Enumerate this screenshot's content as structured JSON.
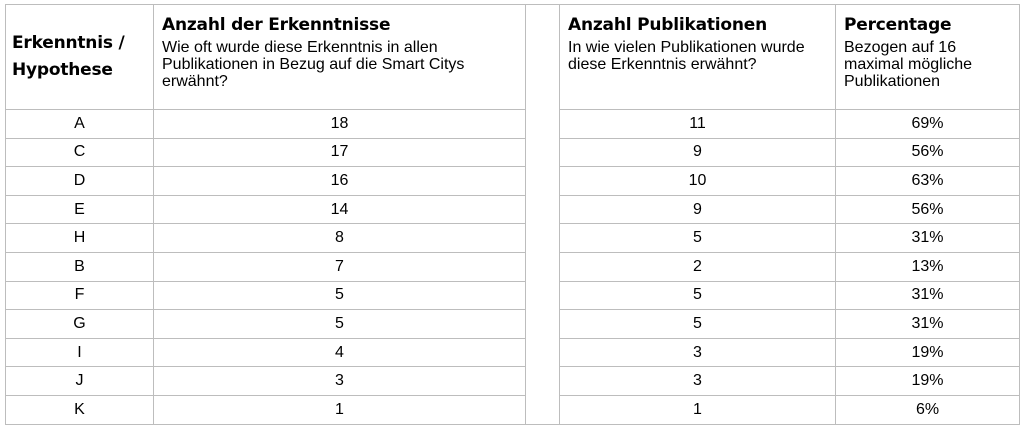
{
  "headers": {
    "hypothesis": "Erkenntnis / Hypothese",
    "findings_title": "Anzahl der Erkenntnisse",
    "findings_sub": "Wie oft wurde diese Erkenntnis in allen Publikationen in Bezug auf die Smart Citys erwähnt?",
    "publications_title": "Anzahl Publikationen",
    "publications_sub": "In wie vielen Publikationen wurde diese Erkenntnis erwähnt?",
    "percentage_title": "Percentage",
    "percentage_sub": "Bezogen auf 16 maximal mögliche Publikationen"
  },
  "rows": [
    {
      "id": "A",
      "findings": "18",
      "publications": "11",
      "percentage": "69%"
    },
    {
      "id": "C",
      "findings": "17",
      "publications": "9",
      "percentage": "56%"
    },
    {
      "id": "D",
      "findings": "16",
      "publications": "10",
      "percentage": "63%"
    },
    {
      "id": "E",
      "findings": "14",
      "publications": "9",
      "percentage": "56%"
    },
    {
      "id": "H",
      "findings": "8",
      "publications": "5",
      "percentage": "31%"
    },
    {
      "id": "B",
      "findings": "7",
      "publications": "2",
      "percentage": "13%"
    },
    {
      "id": "F",
      "findings": "5",
      "publications": "5",
      "percentage": "31%"
    },
    {
      "id": "G",
      "findings": "5",
      "publications": "5",
      "percentage": "31%"
    },
    {
      "id": "I",
      "findings": "4",
      "publications": "3",
      "percentage": "19%"
    },
    {
      "id": "J",
      "findings": "3",
      "publications": "3",
      "percentage": "19%"
    },
    {
      "id": "K",
      "findings": "1",
      "publications": "1",
      "percentage": "6%"
    }
  ]
}
